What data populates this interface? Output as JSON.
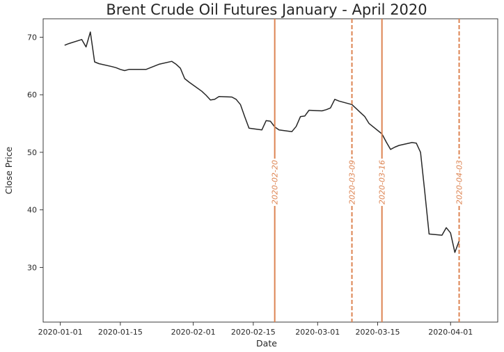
{
  "chart_data": {
    "type": "line",
    "title": "Brent Crude Oil Futures January - April 2020",
    "xlabel": "Date",
    "ylabel": "Close Price",
    "xlim": [
      "2019-12-28",
      "2020-04-12"
    ],
    "ylim": [
      20.5,
      73.2
    ],
    "x_ticks": [
      "2020-01-01",
      "2020-01-15",
      "2020-02-01",
      "2020-02-15",
      "2020-03-01",
      "2020-03-15",
      "2020-04-01"
    ],
    "y_ticks": [
      30,
      40,
      50,
      60,
      70
    ],
    "grid": false,
    "line_color": "#262626",
    "accent_color": "#dd8452",
    "series": [
      {
        "points": [
          [
            "2020-01-02",
            68.6
          ],
          [
            "2020-01-03",
            68.9
          ],
          [
            "2020-01-06",
            69.6
          ],
          [
            "2020-01-07",
            68.3
          ],
          [
            "2020-01-08",
            70.9
          ],
          [
            "2020-01-09",
            65.7
          ],
          [
            "2020-01-10",
            65.4
          ],
          [
            "2020-01-13",
            64.9
          ],
          [
            "2020-01-14",
            64.7
          ],
          [
            "2020-01-15",
            64.4
          ],
          [
            "2020-01-16",
            64.2
          ],
          [
            "2020-01-17",
            64.4
          ],
          [
            "2020-01-21",
            64.4
          ],
          [
            "2020-01-22",
            64.7
          ],
          [
            "2020-01-24",
            65.3
          ],
          [
            "2020-01-27",
            65.8
          ],
          [
            "2020-01-28",
            65.3
          ],
          [
            "2020-01-29",
            64.6
          ],
          [
            "2020-01-30",
            62.8
          ],
          [
            "2020-01-31",
            62.2
          ],
          [
            "2020-02-03",
            60.6
          ],
          [
            "2020-02-04",
            59.9
          ],
          [
            "2020-02-05",
            59.1
          ],
          [
            "2020-02-06",
            59.2
          ],
          [
            "2020-02-07",
            59.7
          ],
          [
            "2020-02-10",
            59.6
          ],
          [
            "2020-02-11",
            59.2
          ],
          [
            "2020-02-12",
            58.3
          ],
          [
            "2020-02-13",
            56.2
          ],
          [
            "2020-02-14",
            54.2
          ],
          [
            "2020-02-17",
            53.9
          ],
          [
            "2020-02-18",
            55.5
          ],
          [
            "2020-02-19",
            55.4
          ],
          [
            "2020-02-20",
            54.4
          ],
          [
            "2020-02-21",
            53.9
          ],
          [
            "2020-02-24",
            53.6
          ],
          [
            "2020-02-25",
            54.5
          ],
          [
            "2020-02-26",
            56.2
          ],
          [
            "2020-02-27",
            56.3
          ],
          [
            "2020-02-28",
            57.3
          ],
          [
            "2020-03-02",
            57.2
          ],
          [
            "2020-03-03",
            57.4
          ],
          [
            "2020-03-04",
            57.7
          ],
          [
            "2020-03-05",
            59.2
          ],
          [
            "2020-03-06",
            58.9
          ],
          [
            "2020-03-09",
            58.3
          ],
          [
            "2020-03-10",
            57.6
          ],
          [
            "2020-03-11",
            56.9
          ],
          [
            "2020-03-12",
            56.2
          ],
          [
            "2020-03-13",
            55.0
          ],
          [
            "2020-03-16",
            53.2
          ],
          [
            "2020-03-17",
            51.8
          ],
          [
            "2020-03-18",
            50.5
          ],
          [
            "2020-03-19",
            50.9
          ],
          [
            "2020-03-20",
            51.2
          ],
          [
            "2020-03-23",
            51.7
          ],
          [
            "2020-03-24",
            51.6
          ],
          [
            "2020-03-25",
            50.0
          ],
          [
            "2020-03-26",
            43.0
          ],
          [
            "2020-03-27",
            35.8
          ],
          [
            "2020-03-30",
            35.6
          ],
          [
            "2020-03-31",
            36.9
          ],
          [
            "2020-04-01",
            36.0
          ],
          [
            "2020-04-02",
            32.6
          ],
          [
            "2020-04-03",
            34.6
          ]
        ]
      }
    ],
    "vertical_lines": [
      {
        "date": "2020-02-20",
        "label": "2020-02-20",
        "style": "solid"
      },
      {
        "date": "2020-03-09",
        "label": "2020-03-09",
        "style": "dashed"
      },
      {
        "date": "2020-03-16",
        "label": "2020-03-16",
        "style": "solid"
      },
      {
        "date": "2020-04-03",
        "label": "2020-04-03",
        "style": "dashed"
      }
    ]
  }
}
